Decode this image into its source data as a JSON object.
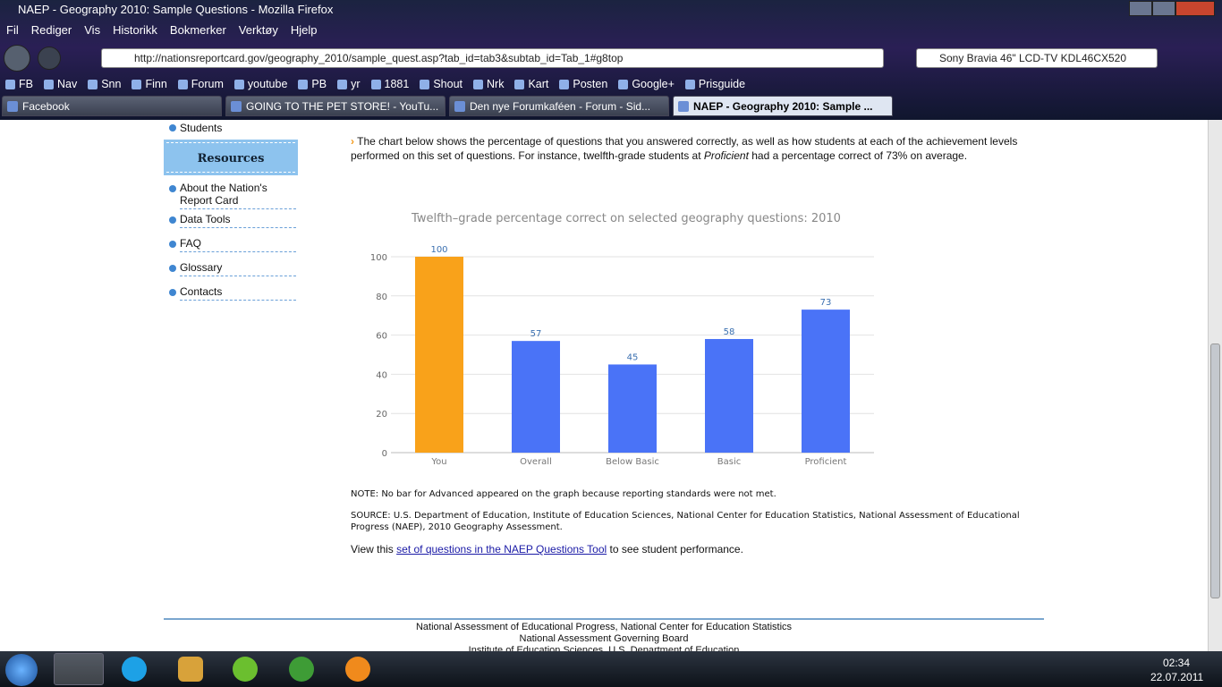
{
  "window": {
    "title": "NAEP - Geography 2010: Sample Questions - Mozilla Firefox"
  },
  "menu": [
    "Fil",
    "Rediger",
    "Vis",
    "Historikk",
    "Bokmerker",
    "Verktøy",
    "Hjelp"
  ],
  "url": "http://nationsreportcard.gov/geography_2010/sample_quest.asp?tab_id=tab3&subtab_id=Tab_1#g8top",
  "search": "Sony Bravia 46\" LCD-TV KDL46CX520",
  "bookmarks": [
    "FB",
    "Nav",
    "Snn",
    "Finn",
    "Forum",
    "youtube",
    "PB",
    "yr",
    "1881",
    "Shout",
    "Nrk",
    "Kart",
    "Posten",
    "Google+",
    "Prisguide"
  ],
  "tabs": [
    "Facebook",
    "GOING TO THE PET STORE! - YouTu...",
    "Den nye Forumkaféen - Forum - Sid...",
    "NAEP - Geography 2010: Sample ..."
  ],
  "sidebar": {
    "top_link": "Students",
    "heading": "Resources",
    "links": [
      "About the Nation's Report Card",
      "Data Tools",
      "FAQ",
      "Glossary",
      "Contacts"
    ]
  },
  "intro": [
    "The chart below shows the percentage of questions that you answered correctly, as well as how students at each of the achievement levels performed on this set of questions. For instance, twelfth-grade students at ",
    "Proficient",
    " had a percentage correct of 73% on average."
  ],
  "chart_data": {
    "type": "bar",
    "title": "Twelfth–grade percentage correct on selected geography questions: 2010",
    "categories": [
      "You",
      "Overall",
      "Below Basic",
      "Basic",
      "Proficient"
    ],
    "values": [
      100,
      57,
      45,
      58,
      73
    ],
    "colors": [
      "#f9a21a",
      "#4a73f7",
      "#4a73f7",
      "#4a73f7",
      "#4a73f7"
    ],
    "ylim": [
      0,
      100
    ],
    "yticks": [
      0,
      20,
      40,
      60,
      80,
      100
    ],
    "grid": true
  },
  "note": "NOTE: No bar for Advanced appeared on the graph because reporting standards were not met.",
  "source": "SOURCE: U.S. Department of Education, Institute of Education Sciences, National Center for Education Statistics, National Assessment of Educational Progress (NAEP), 2010 Geography Assessment.",
  "view": [
    "View this ",
    "set of questions in the NAEP Questions Tool",
    " to see student performance."
  ],
  "footer": [
    "National Assessment of Educational Progress, National Center for Education Statistics",
    "National Assessment Governing Board",
    "Institute of Education Sciences, U.S. Department of Education"
  ],
  "taskbar": {
    "time": "02:34",
    "date": "22.07.2011"
  }
}
